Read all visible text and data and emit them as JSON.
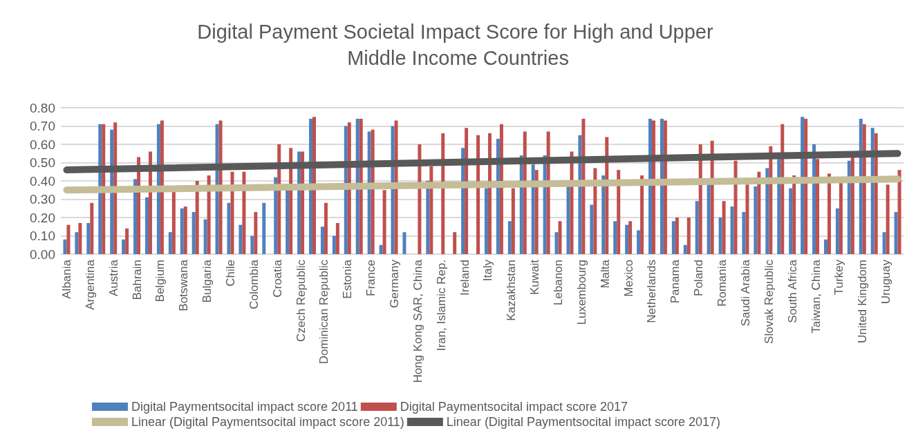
{
  "chart_data": {
    "type": "bar",
    "title": "Digital Payment Societal Impact Score for High and Upper Middle Income Countries",
    "categories": [
      "Albania",
      null,
      "Argentina",
      null,
      "Austria",
      null,
      "Bahrain",
      null,
      "Belgium",
      null,
      "Botswana",
      null,
      "Bulgaria",
      null,
      "Chile",
      null,
      "Colombia",
      null,
      "Croatia",
      null,
      "Czech Republic",
      null,
      "Dominican Republic",
      null,
      "Estonia",
      null,
      "France",
      null,
      "Germany",
      null,
      "Hong Kong SAR, China",
      null,
      "Iran, Islamic Rep.",
      null,
      "Ireland",
      null,
      "Italy",
      null,
      "Kazakhstan",
      null,
      "Kuwait",
      null,
      "Lebanon",
      null,
      "Luxembourg",
      null,
      "Malta",
      null,
      "Mexico",
      null,
      "Netherlands",
      null,
      "Panama",
      null,
      "Poland",
      null,
      "Romania",
      null,
      "Saudi Arabia",
      null,
      "Slovak Republic",
      null,
      "South Africa",
      null,
      "Taiwan, China",
      null,
      "Turkey",
      null,
      "United Kingdom",
      null,
      "Uruguay",
      null
    ],
    "series": [
      {
        "name": "Digital Paymentsocital impact score 2011",
        "color": "#4f81bd",
        "values": [
          0.08,
          0.12,
          0.17,
          0.71,
          0.68,
          0.08,
          0.41,
          0.31,
          0.71,
          0.12,
          0.25,
          0.23,
          0.19,
          0.71,
          0.28,
          0.16,
          0.1,
          0.28,
          0.42,
          0.35,
          0.56,
          0.74,
          0.15,
          0.1,
          0.7,
          0.74,
          0.67,
          0.05,
          0.7,
          0.12,
          null,
          0.4,
          null,
          null,
          0.58,
          null,
          0.36,
          0.63,
          0.18,
          0.54,
          0.49,
          0.54,
          0.12,
          0.37,
          0.65,
          0.27,
          0.43,
          0.18,
          0.16,
          0.13,
          0.74,
          0.74,
          0.18,
          0.05,
          0.29,
          0.38,
          0.2,
          0.26,
          0.23,
          0.37,
          0.47,
          0.52,
          0.36,
          0.75,
          0.6,
          0.08,
          0.25,
          0.51,
          0.74,
          0.69,
          0.12,
          0.23
        ]
      },
      {
        "name": "Digital Paymentsocital impact score 2017",
        "color": "#c0504d",
        "values": [
          0.16,
          0.17,
          0.28,
          0.71,
          0.72,
          0.14,
          0.53,
          0.56,
          0.73,
          0.34,
          0.26,
          0.4,
          0.43,
          0.73,
          0.45,
          0.45,
          0.23,
          null,
          0.6,
          0.58,
          0.56,
          0.75,
          0.28,
          0.17,
          0.72,
          0.74,
          0.68,
          0.35,
          0.73,
          null,
          0.6,
          0.48,
          0.66,
          0.12,
          0.69,
          0.65,
          0.66,
          0.71,
          0.36,
          0.67,
          0.46,
          0.67,
          0.18,
          0.56,
          0.74,
          0.47,
          0.64,
          0.46,
          0.18,
          0.43,
          0.73,
          0.73,
          0.2,
          0.2,
          0.6,
          0.62,
          0.29,
          0.51,
          0.38,
          0.45,
          0.59,
          0.71,
          0.43,
          0.74,
          0.52,
          0.44,
          0.39,
          0.53,
          0.71,
          0.66,
          0.38,
          0.46
        ]
      },
      {
        "name": "Linear (Digital Paymentsocital impact score 2011)",
        "type": "line",
        "color": "#c4bd97",
        "values": [
          0.35,
          null,
          null,
          null,
          null,
          null,
          null,
          null,
          null,
          null,
          null,
          null,
          null,
          null,
          null,
          null,
          null,
          null,
          null,
          null,
          null,
          null,
          null,
          null,
          null,
          null,
          null,
          null,
          null,
          null,
          null,
          null,
          null,
          null,
          null,
          null,
          null,
          null,
          null,
          null,
          null,
          null,
          null,
          null,
          null,
          null,
          null,
          null,
          null,
          null,
          null,
          null,
          null,
          null,
          null,
          null,
          null,
          null,
          null,
          null,
          null,
          null,
          null,
          null,
          null,
          null,
          null,
          null,
          null,
          null,
          null,
          0.41
        ]
      },
      {
        "name": "Linear (Digital Paymentsocital impact score 2017)",
        "type": "line",
        "color": "#595959",
        "values": [
          0.46,
          null,
          null,
          null,
          null,
          null,
          null,
          null,
          null,
          null,
          null,
          null,
          null,
          null,
          null,
          null,
          null,
          null,
          null,
          null,
          null,
          null,
          null,
          null,
          null,
          null,
          null,
          null,
          null,
          null,
          null,
          null,
          null,
          null,
          null,
          null,
          null,
          null,
          null,
          null,
          null,
          null,
          null,
          null,
          null,
          null,
          null,
          null,
          null,
          null,
          null,
          null,
          null,
          null,
          null,
          null,
          null,
          null,
          null,
          null,
          null,
          null,
          null,
          null,
          null,
          null,
          null,
          null,
          null,
          null,
          null,
          0.55
        ]
      }
    ],
    "ylim": [
      0,
      0.8
    ],
    "yticks": [
      {
        "value": 0,
        "label": "0.00"
      },
      {
        "value": 0.1,
        "label": "0.10"
      },
      {
        "value": 0.2,
        "label": "0.20"
      },
      {
        "value": 0.3,
        "label": "0.30"
      },
      {
        "value": 0.4,
        "label": "0.40"
      },
      {
        "value": 0.5,
        "label": "0.50"
      },
      {
        "value": 0.6,
        "label": "0.60"
      },
      {
        "value": 0.7,
        "label": "0.70"
      },
      {
        "value": 0.8,
        "label": "0.80"
      }
    ],
    "grid": "y",
    "legend": "bottom"
  }
}
